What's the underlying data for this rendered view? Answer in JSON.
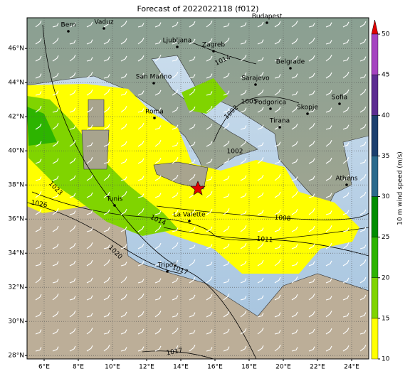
{
  "title": "Forecast of 2022022118 (f012)",
  "map": {
    "xlim": [
      5,
      25
    ],
    "ylim": [
      27.8,
      47.8
    ],
    "xticks": [
      {
        "value": 6,
        "label": "6°E"
      },
      {
        "value": 8,
        "label": "8°E"
      },
      {
        "value": 10,
        "label": "10°E"
      },
      {
        "value": 12,
        "label": "12°E"
      },
      {
        "value": 14,
        "label": "14°E"
      },
      {
        "value": 16,
        "label": "16°E"
      },
      {
        "value": 18,
        "label": "18°E"
      },
      {
        "value": 20,
        "label": "20°E"
      },
      {
        "value": 22,
        "label": "22°E"
      },
      {
        "value": 24,
        "label": "24°E"
      }
    ],
    "yticks": [
      {
        "value": 28,
        "label": "28°N"
      },
      {
        "value": 30,
        "label": "30°N"
      },
      {
        "value": 32,
        "label": "32°N"
      },
      {
        "value": 34,
        "label": "34°N"
      },
      {
        "value": 36,
        "label": "36°N"
      },
      {
        "value": 38,
        "label": "38°N"
      },
      {
        "value": 40,
        "label": "40°N"
      },
      {
        "value": 42,
        "label": "42°N"
      },
      {
        "value": 44,
        "label": "44°N"
      },
      {
        "value": 46,
        "label": "46°N"
      }
    ],
    "grid": true
  },
  "cities": [
    "Bern",
    "Vaduz",
    "Budapest",
    "Ljubljana",
    "Zagreb",
    "Belgrade",
    "San Marino",
    "Sarajevo",
    "Podgorica",
    "Sofia",
    "Skopje",
    "Tirana",
    "Roma",
    "Athens",
    "Tunis",
    "La Valette",
    "Tripoli"
  ],
  "isobar_labels": [
    "1014",
    "1005",
    "1002",
    "1002",
    "1023",
    "1026",
    "1014",
    "1008",
    "1011",
    "1020",
    "1017",
    "1017"
  ],
  "colorbar": {
    "label": "10 m wind speed (m/s)",
    "ticks": [
      10,
      15,
      20,
      25,
      30,
      35,
      40,
      45,
      50
    ],
    "colors": [
      "#ffff00",
      "#80d400",
      "#2db400",
      "#008c00",
      "#2b6a8c",
      "#1c3f6e",
      "#5c2d91",
      "#a544c0"
    ],
    "extend_color": "#e00000"
  }
}
